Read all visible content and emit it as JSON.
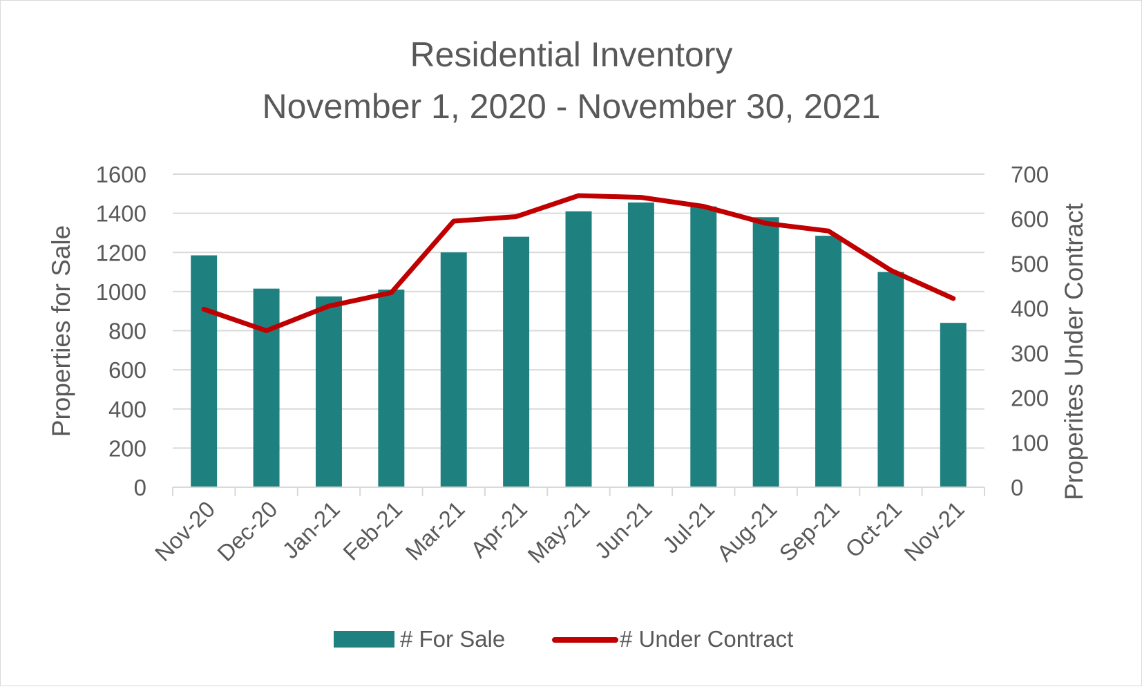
{
  "chart_data": {
    "type": "bar",
    "title": "Residential Inventory",
    "subtitle": "November 1, 2020 - November 30, 2021",
    "categories": [
      "Nov-20",
      "Dec-20",
      "Jan-21",
      "Feb-21",
      "Mar-21",
      "Apr-21",
      "May-21",
      "Jun-21",
      "Jul-21",
      "Aug-21",
      "Sep-21",
      "Oct-21",
      "Nov-21"
    ],
    "ylabel": "Properties for Sale",
    "y2label": "Properites Under Contract",
    "ylim": [
      0,
      1600
    ],
    "y2lim": [
      0,
      700
    ],
    "yticks": [
      "0",
      "200",
      "400",
      "600",
      "800",
      "1000",
      "1200",
      "1400",
      "1600"
    ],
    "y2ticks": [
      "0",
      "100",
      "200",
      "300",
      "400",
      "500",
      "600",
      "700"
    ],
    "grid": true,
    "legend_position": "bottom",
    "series": [
      {
        "name": "# For Sale",
        "type": "bar",
        "axis": "left",
        "color": "#1f8080",
        "values": [
          1185,
          1015,
          975,
          1010,
          1200,
          1280,
          1410,
          1455,
          1435,
          1380,
          1285,
          1100,
          840
        ]
      },
      {
        "name": "# Under Contract",
        "type": "line",
        "axis": "right",
        "color": "#c00000",
        "values": [
          398,
          350,
          405,
          435,
          595,
          605,
          652,
          648,
          628,
          590,
          573,
          485,
          422
        ]
      }
    ]
  }
}
